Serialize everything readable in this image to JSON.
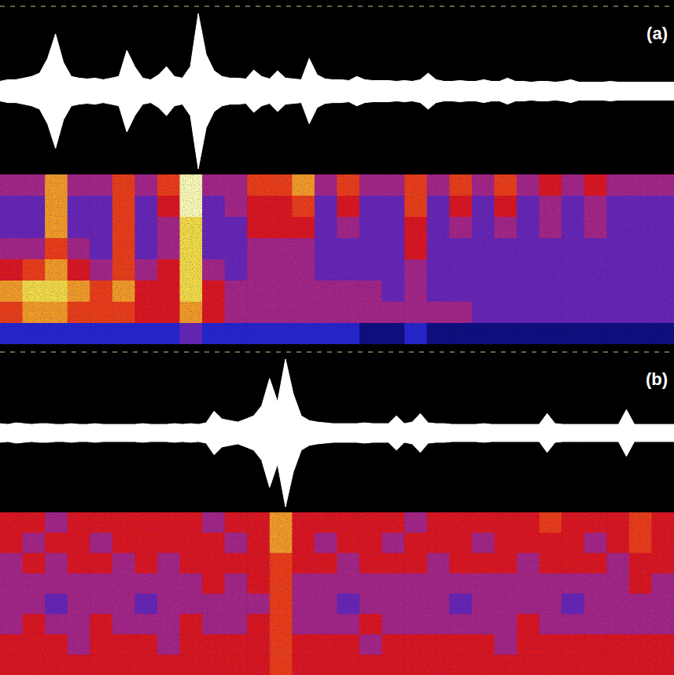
{
  "chart_data": [
    {
      "type": "waveform_spectrogram",
      "label": "(a)",
      "tick_labels": false,
      "waveform": {
        "ylim": [
          -100,
          100
        ],
        "color": "#ffffff",
        "values": [
          12,
          14,
          14,
          16,
          18,
          22,
          40,
          70,
          35,
          18,
          16,
          15,
          16,
          14,
          16,
          18,
          50,
          30,
          16,
          14,
          20,
          30,
          18,
          16,
          30,
          95,
          45,
          25,
          18,
          16,
          16,
          15,
          26,
          18,
          15,
          25,
          16,
          15,
          14,
          40,
          20,
          15,
          14,
          14,
          13,
          18,
          14,
          13,
          13,
          13,
          12,
          13,
          12,
          14,
          22,
          14,
          12,
          12,
          13,
          12,
          12,
          14,
          12,
          12,
          16,
          12,
          12,
          11,
          12,
          12,
          11,
          12,
          14,
          11,
          11,
          11,
          11,
          12,
          11,
          11,
          11,
          11,
          11,
          11,
          11,
          11
        ]
      },
      "spectrogram": {
        "clim": [
          0,
          9
        ],
        "cells": [
          [
            4,
            4,
            7,
            4,
            4,
            6,
            4,
            6,
            9,
            4,
            4,
            6,
            6,
            7,
            4,
            6,
            4,
            4,
            6,
            4,
            6,
            4,
            6,
            4,
            5,
            4,
            5,
            4,
            4,
            4
          ],
          [
            3,
            3,
            7,
            3,
            3,
            6,
            3,
            5,
            9,
            3,
            4,
            5,
            5,
            6,
            3,
            5,
            3,
            3,
            6,
            3,
            5,
            3,
            5,
            3,
            4,
            3,
            4,
            3,
            3,
            3
          ],
          [
            3,
            3,
            7,
            3,
            3,
            6,
            3,
            4,
            8,
            3,
            3,
            5,
            5,
            5,
            3,
            4,
            3,
            3,
            5,
            3,
            4,
            3,
            4,
            3,
            4,
            3,
            4,
            3,
            3,
            3
          ],
          [
            4,
            4,
            6,
            4,
            3,
            6,
            3,
            4,
            8,
            3,
            3,
            4,
            4,
            4,
            3,
            3,
            3,
            3,
            5,
            3,
            3,
            3,
            3,
            3,
            3,
            3,
            3,
            3,
            3,
            3
          ],
          [
            5,
            6,
            7,
            5,
            4,
            6,
            4,
            5,
            8,
            4,
            3,
            4,
            4,
            4,
            3,
            3,
            3,
            3,
            4,
            3,
            3,
            3,
            3,
            3,
            3,
            3,
            3,
            3,
            3,
            3
          ],
          [
            7,
            8,
            8,
            7,
            6,
            7,
            5,
            5,
            8,
            5,
            4,
            4,
            4,
            4,
            4,
            4,
            4,
            3,
            4,
            3,
            3,
            3,
            3,
            3,
            3,
            3,
            3,
            3,
            3,
            3
          ],
          [
            6,
            7,
            7,
            6,
            6,
            6,
            5,
            5,
            7,
            5,
            4,
            4,
            4,
            4,
            4,
            4,
            4,
            4,
            4,
            4,
            4,
            3,
            3,
            3,
            3,
            3,
            3,
            3,
            3,
            3
          ],
          [
            2,
            2,
            2,
            2,
            2,
            2,
            2,
            2,
            3,
            2,
            2,
            2,
            2,
            2,
            2,
            2,
            1,
            1,
            2,
            1,
            1,
            1,
            1,
            1,
            1,
            1,
            1,
            1,
            1,
            1
          ]
        ]
      }
    },
    {
      "type": "waveform_spectrogram",
      "label": "(b)",
      "tick_labels": false,
      "waveform": {
        "ylim": [
          -100,
          100
        ],
        "color": "#ffffff",
        "values": [
          12,
          11,
          13,
          12,
          11,
          12,
          12,
          11,
          11,
          12,
          11,
          11,
          12,
          11,
          11,
          11,
          11,
          11,
          12,
          11,
          11,
          11,
          12,
          11,
          12,
          11,
          13,
          28,
          18,
          16,
          14,
          18,
          22,
          35,
          70,
          40,
          95,
          50,
          22,
          16,
          14,
          13,
          12,
          12,
          12,
          12,
          13,
          12,
          12,
          12,
          22,
          12,
          14,
          25,
          13,
          12,
          12,
          11,
          11,
          11,
          11,
          12,
          11,
          11,
          11,
          11,
          11,
          11,
          11,
          25,
          12,
          11,
          11,
          11,
          11,
          11,
          11,
          11,
          11,
          30,
          11,
          11,
          11,
          11,
          11,
          11
        ]
      },
      "spectrogram": {
        "clim": [
          0,
          9
        ],
        "cells": [
          [
            5,
            5,
            4,
            5,
            5,
            5,
            5,
            5,
            5,
            4,
            5,
            5,
            7,
            5,
            5,
            5,
            5,
            5,
            4,
            5,
            5,
            5,
            5,
            5,
            6,
            5,
            5,
            5,
            6,
            5
          ],
          [
            5,
            4,
            5,
            5,
            4,
            5,
            5,
            5,
            5,
            5,
            4,
            5,
            7,
            5,
            4,
            5,
            5,
            4,
            5,
            5,
            5,
            4,
            5,
            5,
            5,
            5,
            4,
            5,
            6,
            5
          ],
          [
            4,
            5,
            4,
            5,
            5,
            4,
            5,
            4,
            5,
            5,
            5,
            5,
            6,
            5,
            5,
            4,
            5,
            5,
            5,
            4,
            5,
            5,
            5,
            4,
            5,
            5,
            5,
            4,
            5,
            5
          ],
          [
            4,
            4,
            4,
            4,
            4,
            4,
            4,
            4,
            4,
            5,
            4,
            5,
            6,
            4,
            4,
            4,
            4,
            4,
            4,
            4,
            4,
            4,
            4,
            4,
            4,
            4,
            4,
            4,
            5,
            4
          ],
          [
            4,
            4,
            3,
            4,
            4,
            4,
            3,
            4,
            4,
            4,
            4,
            4,
            6,
            4,
            4,
            3,
            4,
            4,
            4,
            4,
            3,
            4,
            4,
            4,
            4,
            3,
            4,
            4,
            4,
            4
          ],
          [
            4,
            5,
            4,
            4,
            5,
            4,
            4,
            4,
            5,
            4,
            4,
            5,
            6,
            4,
            4,
            4,
            5,
            4,
            4,
            4,
            4,
            4,
            4,
            5,
            4,
            4,
            4,
            4,
            4,
            4
          ],
          [
            5,
            5,
            5,
            4,
            5,
            5,
            5,
            4,
            5,
            5,
            5,
            5,
            6,
            5,
            5,
            5,
            4,
            5,
            5,
            5,
            5,
            5,
            4,
            5,
            5,
            5,
            5,
            5,
            5,
            5
          ],
          [
            5,
            5,
            5,
            5,
            5,
            5,
            5,
            5,
            5,
            5,
            5,
            5,
            6,
            5,
            5,
            5,
            5,
            5,
            5,
            5,
            5,
            5,
            5,
            5,
            5,
            5,
            5,
            5,
            5,
            5
          ]
        ]
      }
    }
  ]
}
